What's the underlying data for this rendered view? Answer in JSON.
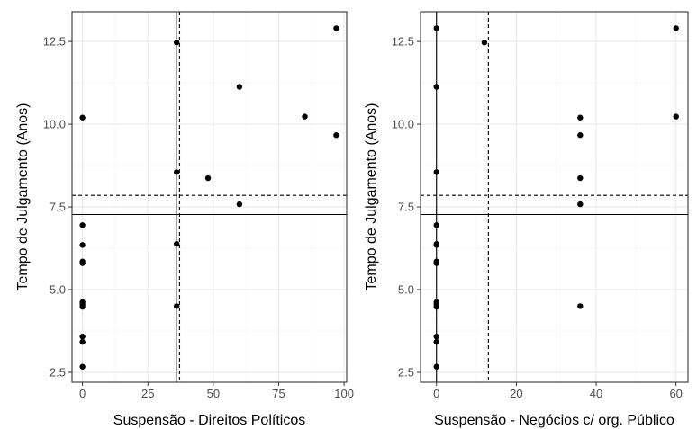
{
  "chart_data": [
    {
      "type": "scatter",
      "xlabel": "Suspensão - Direitos Políticos",
      "ylabel": "Tempo de Julgamento (Anos)",
      "xlim": [
        -4,
        101
      ],
      "ylim": [
        2.2,
        13.4
      ],
      "x_ticks": [
        0,
        25,
        50,
        75,
        100
      ],
      "x_tick_labels": [
        "0",
        "25",
        "50",
        "75",
        "100"
      ],
      "y_ticks": [
        2.5,
        5.0,
        7.5,
        10.0,
        12.5
      ],
      "y_tick_labels": [
        "2.5",
        "5.0",
        "7.5",
        "10.0",
        "12.5"
      ],
      "grid": true,
      "points": [
        {
          "x": 0,
          "y": 10.2
        },
        {
          "x": 0,
          "y": 6.95
        },
        {
          "x": 0,
          "y": 6.35
        },
        {
          "x": 0,
          "y": 5.85
        },
        {
          "x": 0,
          "y": 5.8
        },
        {
          "x": 0,
          "y": 4.62
        },
        {
          "x": 0,
          "y": 4.55
        },
        {
          "x": 0,
          "y": 4.48
        },
        {
          "x": 0,
          "y": 3.58
        },
        {
          "x": 0,
          "y": 3.42
        },
        {
          "x": 0,
          "y": 2.67
        },
        {
          "x": 36,
          "y": 12.47
        },
        {
          "x": 36,
          "y": 8.55
        },
        {
          "x": 36,
          "y": 6.38
        },
        {
          "x": 36,
          "y": 4.5
        },
        {
          "x": 48,
          "y": 8.37
        },
        {
          "x": 60,
          "y": 11.13
        },
        {
          "x": 60,
          "y": 7.58
        },
        {
          "x": 85,
          "y": 10.23
        },
        {
          "x": 97,
          "y": 12.9
        },
        {
          "x": 97,
          "y": 9.67
        }
      ],
      "hlines": [
        {
          "y": 7.85,
          "style": "dashed"
        },
        {
          "y": 7.27,
          "style": "solid"
        }
      ],
      "vlines": [
        {
          "x": 37.1,
          "style": "dashed"
        },
        {
          "x": 36.0,
          "style": "solid"
        }
      ]
    },
    {
      "type": "scatter",
      "xlabel": "Suspensão - Negócios c/ org. Público",
      "ylabel": "Tempo de Julgamento (Anos)",
      "xlim": [
        -4,
        63
      ],
      "ylim": [
        2.2,
        13.4
      ],
      "x_ticks": [
        0,
        20,
        40,
        60
      ],
      "x_tick_labels": [
        "0",
        "20",
        "40",
        "60"
      ],
      "y_ticks": [
        2.5,
        5.0,
        7.5,
        10.0,
        12.5
      ],
      "y_tick_labels": [
        "2.5",
        "5.0",
        "7.5",
        "10.0",
        "12.5"
      ],
      "grid": true,
      "points": [
        {
          "x": 0,
          "y": 12.9
        },
        {
          "x": 0,
          "y": 11.13
        },
        {
          "x": 0,
          "y": 8.55
        },
        {
          "x": 0,
          "y": 6.95
        },
        {
          "x": 0,
          "y": 6.38
        },
        {
          "x": 0,
          "y": 6.35
        },
        {
          "x": 0,
          "y": 5.85
        },
        {
          "x": 0,
          "y": 5.8
        },
        {
          "x": 0,
          "y": 4.62
        },
        {
          "x": 0,
          "y": 4.55
        },
        {
          "x": 0,
          "y": 4.48
        },
        {
          "x": 0,
          "y": 3.58
        },
        {
          "x": 0,
          "y": 3.42
        },
        {
          "x": 0,
          "y": 2.67
        },
        {
          "x": 12,
          "y": 12.47
        },
        {
          "x": 36,
          "y": 10.2
        },
        {
          "x": 36,
          "y": 9.67
        },
        {
          "x": 36,
          "y": 8.37
        },
        {
          "x": 36,
          "y": 7.58
        },
        {
          "x": 36,
          "y": 4.5
        },
        {
          "x": 60,
          "y": 12.9
        },
        {
          "x": 60,
          "y": 10.23
        }
      ],
      "hlines": [
        {
          "y": 7.85,
          "style": "dashed"
        },
        {
          "y": 7.27,
          "style": "solid"
        }
      ],
      "vlines": [
        {
          "x": 13.0,
          "style": "dashed"
        },
        {
          "x": 0.0,
          "style": "solid"
        }
      ]
    }
  ],
  "colors": {
    "point": "#000000",
    "panel_border": "#333333",
    "grid_major": "#ebebeb",
    "grid_minor": "#f5f5f5",
    "tick_text": "#4d4d4d",
    "axis_title": "#000000"
  }
}
